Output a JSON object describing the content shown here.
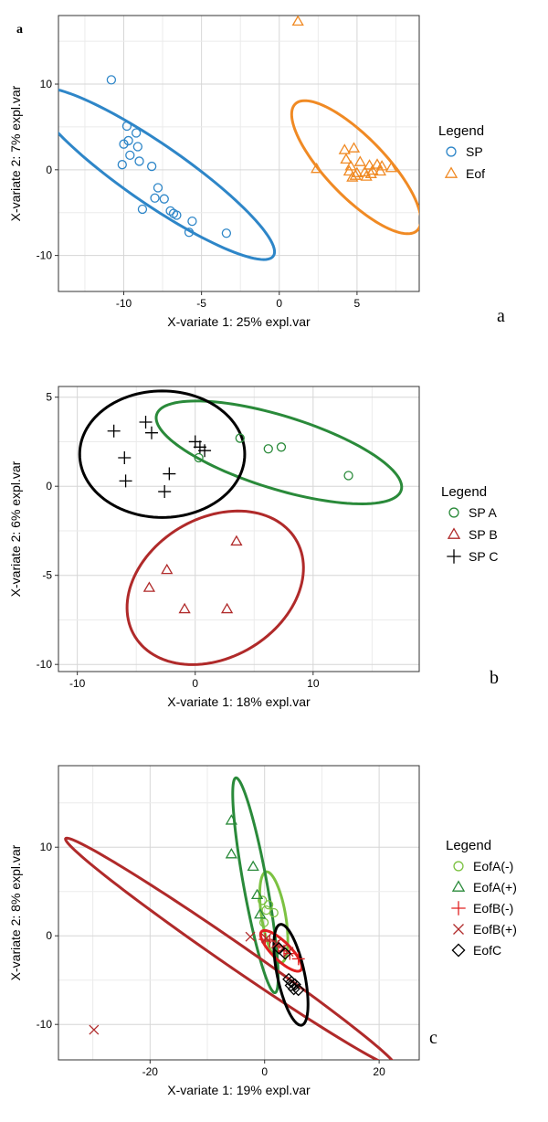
{
  "chart_data": [
    {
      "type": "scatter",
      "panel_label": "a",
      "corner_label": "a",
      "xlabel": "X-variate 1: 25% expl.var",
      "ylabel": "X-variate 2: 7% expl.var",
      "xlim": [
        -14.2,
        9
      ],
      "ylim": [
        -14.2,
        18
      ],
      "xticks": [
        -10,
        -5,
        0,
        5
      ],
      "yticks": [
        -10,
        0,
        10
      ],
      "grid": true,
      "legend": {
        "title": "Legend",
        "placement": "right"
      },
      "series": [
        {
          "name": "SP",
          "marker": "circle",
          "color": "#2e86c8",
          "points": [
            [
              -10.8,
              10.5
            ],
            [
              -9.8,
              5.1
            ],
            [
              -9.2,
              4.3
            ],
            [
              -10.0,
              3.0
            ],
            [
              -9.7,
              3.4
            ],
            [
              -9.1,
              2.7
            ],
            [
              -9.6,
              1.7
            ],
            [
              -9.0,
              1.0
            ],
            [
              -10.1,
              0.6
            ],
            [
              -8.2,
              0.4
            ],
            [
              -7.8,
              -2.1
            ],
            [
              -8.0,
              -3.3
            ],
            [
              -7.4,
              -3.4
            ],
            [
              -8.8,
              -4.6
            ],
            [
              -7.0,
              -4.8
            ],
            [
              -6.8,
              -5.1
            ],
            [
              -6.6,
              -5.3
            ],
            [
              -5.6,
              -6.0
            ],
            [
              -5.8,
              -7.3
            ],
            [
              -3.4,
              -7.4
            ]
          ],
          "ellipse": {
            "center": [
              -8.05,
              -0.45
            ],
            "semi_axes": [
              12.4,
              2.6
            ],
            "angle_deg": -53
          }
        },
        {
          "name": "Eof",
          "marker": "triangle",
          "color": "#f08a24",
          "points": [
            [
              1.2,
              17.3
            ],
            [
              2.4,
              0.1
            ],
            [
              4.2,
              2.3
            ],
            [
              4.8,
              2.5
            ],
            [
              4.3,
              1.2
            ],
            [
              5.2,
              0.9
            ],
            [
              5.8,
              0.5
            ],
            [
              6.3,
              0.6
            ],
            [
              6.6,
              0.4
            ],
            [
              7.2,
              0.2
            ],
            [
              4.6,
              0.4
            ],
            [
              4.5,
              -0.2
            ],
            [
              5.0,
              -0.4
            ],
            [
              5.5,
              -0.3
            ],
            [
              6.0,
              -0.1
            ],
            [
              6.5,
              -0.2
            ],
            [
              4.9,
              -0.7
            ],
            [
              5.6,
              -0.8
            ],
            [
              4.7,
              -0.9
            ],
            [
              5.9,
              -0.5
            ]
          ],
          "ellipse": {
            "center": [
              4.95,
              0.3
            ],
            "semi_axes": [
              8.5,
              2.3
            ],
            "angle_deg": -65
          }
        }
      ]
    },
    {
      "type": "scatter",
      "panel_label": "b",
      "xlabel": "X-variate 1: 18% expl.var",
      "ylabel": "X-variate 2: 6% expl.var",
      "xlim": [
        -11.6,
        19
      ],
      "ylim": [
        -10.4,
        5.6
      ],
      "xticks": [
        -10,
        0,
        10
      ],
      "yticks": [
        -10,
        -5,
        0,
        5
      ],
      "grid": true,
      "legend": {
        "title": "Legend",
        "placement": "right"
      },
      "series": [
        {
          "name": "SP  A",
          "marker": "circle",
          "color": "#2a8a3a",
          "points": [
            [
              3.8,
              2.7
            ],
            [
              6.2,
              2.1
            ],
            [
              7.3,
              2.2
            ],
            [
              13.0,
              0.6
            ],
            [
              0.3,
              1.6
            ]
          ],
          "ellipse": {
            "center": [
              7.1,
              1.9
            ],
            "semi_axes": [
              10.6,
              2.1
            ],
            "angle_deg": -11
          }
        },
        {
          "name": "SP  B",
          "marker": "triangle",
          "color": "#b02a2a",
          "points": [
            [
              3.5,
              -3.1
            ],
            [
              -2.4,
              -4.7
            ],
            [
              -3.9,
              -5.7
            ],
            [
              -0.9,
              -6.9
            ],
            [
              2.7,
              -6.9
            ]
          ],
          "ellipse": {
            "center": [
              1.7,
              -5.7
            ],
            "semi_axes": [
              7.6,
              4.1
            ],
            "angle_deg": 12
          }
        },
        {
          "name": "SP  C",
          "marker": "plus",
          "color": "#000000",
          "points": [
            [
              -4.2,
              3.6
            ],
            [
              -6.9,
              3.1
            ],
            [
              -3.7,
              3.0
            ],
            [
              0.0,
              2.5
            ],
            [
              0.4,
              2.2
            ],
            [
              0.8,
              2.0
            ],
            [
              -6.0,
              1.6
            ],
            [
              -2.2,
              0.7
            ],
            [
              -5.9,
              0.3
            ],
            [
              -2.6,
              -0.3
            ]
          ],
          "ellipse": {
            "center": [
              -2.8,
              1.8
            ],
            "semi_axes": [
              7.0,
              3.55
            ],
            "angle_deg": 0
          }
        }
      ]
    },
    {
      "type": "scatter",
      "panel_label": "c",
      "xlabel": "X-variate 1: 19% expl.var",
      "ylabel": "X-variate 2: 8% expl.var",
      "xlim": [
        -36,
        27
      ],
      "ylim": [
        -14,
        19.2
      ],
      "xticks": [
        -20,
        0,
        20
      ],
      "yticks": [
        -10,
        0,
        10
      ],
      "grid": true,
      "legend": {
        "title": "Legend",
        "placement": "right"
      },
      "series": [
        {
          "name": "EofA(-)",
          "marker": "circle",
          "color": "#7cc242",
          "points": [
            [
              -0.4,
              4.0
            ],
            [
              0.3,
              2.9
            ],
            [
              -0.1,
              1.5
            ],
            [
              0.7,
              3.5
            ],
            [
              1.6,
              2.6
            ]
          ],
          "ellipse": {
            "center": [
              1.6,
              2.1
            ],
            "semi_axes": [
              5.3,
              2.05
            ],
            "angle_deg": -74
          }
        },
        {
          "name": "EofA(+)",
          "marker": "triangle",
          "color": "#2a8a3a",
          "points": [
            [
              -5.8,
              13.0
            ],
            [
              -5.8,
              9.2
            ],
            [
              -2.0,
              7.8
            ],
            [
              -1.3,
              4.6
            ],
            [
              -0.8,
              2.4
            ]
          ],
          "ellipse": {
            "center": [
              -1.6,
              5.7
            ],
            "semi_axes": [
              12.6,
              2.0
            ],
            "angle_deg": -74
          }
        },
        {
          "name": "EofB(-)",
          "marker": "plus",
          "color": "#e02020",
          "points": [
            [
              0.1,
              -0.4
            ],
            [
              0.9,
              -0.6
            ],
            [
              2.4,
              -1.2
            ],
            [
              3.4,
              -1.7
            ],
            [
              4.4,
              -2.0
            ],
            [
              5.9,
              -2.6
            ]
          ],
          "ellipse": {
            "center": [
              2.9,
              -1.7
            ],
            "semi_axes": [
              4.1,
              1.2
            ],
            "angle_deg": -30
          }
        },
        {
          "name": "EofB(+)",
          "marker": "cross",
          "color": "#b02a2a",
          "points": [
            [
              -29.8,
              -10.6
            ],
            [
              -2.5,
              -0.1
            ],
            [
              0.3,
              -0.3
            ],
            [
              2.0,
              -0.9
            ],
            [
              3.2,
              -1.4
            ],
            [
              4.2,
              -1.8
            ]
          ],
          "ellipse": {
            "center": [
              -5.9,
              -1.9
            ],
            "semi_axes": [
              31.6,
              1.5
            ],
            "angle_deg": -24
          }
        },
        {
          "name": "EofC",
          "marker": "diamond",
          "color": "#000000",
          "points": [
            [
              2.5,
              -1.4
            ],
            [
              3.6,
              -2.0
            ],
            [
              4.2,
              -4.9
            ],
            [
              5.3,
              -5.5
            ],
            [
              4.7,
              -5.2
            ],
            [
              5.1,
              -6.0
            ],
            [
              5.9,
              -6.1
            ],
            [
              4.6,
              -5.6
            ]
          ],
          "ellipse": {
            "center": [
              4.6,
              -4.4
            ],
            "semi_axes": [
              6.0,
              2.3
            ],
            "angle_deg": -70
          }
        }
      ]
    }
  ]
}
